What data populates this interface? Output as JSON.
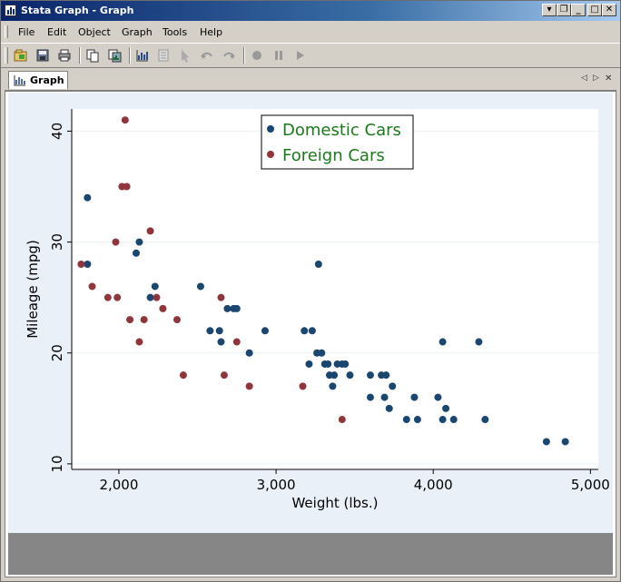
{
  "window": {
    "title": "Stata Graph - Graph"
  },
  "menu": {
    "items": [
      "File",
      "Edit",
      "Object",
      "Graph",
      "Tools",
      "Help"
    ]
  },
  "tab": {
    "label": "Graph"
  },
  "chart_data": {
    "type": "scatter",
    "xlabel": "Weight (lbs.)",
    "ylabel": "Mileage (mpg)",
    "xlim": [
      1700,
      5050
    ],
    "ylim": [
      9.5,
      42
    ],
    "xticks": [
      2000,
      3000,
      4000,
      5000
    ],
    "xtick_labels": [
      "2,000",
      "3,000",
      "4,000",
      "5,000"
    ],
    "yticks": [
      10,
      20,
      30,
      40
    ],
    "ytick_labels": [
      "10",
      "20",
      "30",
      "40"
    ],
    "grid": true,
    "legend_position": "top-center",
    "series": [
      {
        "name": "Domestic Cars",
        "color": "#1a476f",
        "points": [
          [
            1800,
            34
          ],
          [
            1800,
            28
          ],
          [
            2110,
            29
          ],
          [
            2130,
            30
          ],
          [
            2200,
            25
          ],
          [
            2230,
            26
          ],
          [
            2520,
            26
          ],
          [
            2580,
            22
          ],
          [
            2640,
            22
          ],
          [
            2650,
            21
          ],
          [
            2690,
            24
          ],
          [
            2730,
            24
          ],
          [
            2750,
            24
          ],
          [
            2830,
            20
          ],
          [
            2930,
            22
          ],
          [
            3180,
            22
          ],
          [
            3210,
            19
          ],
          [
            3230,
            22
          ],
          [
            3260,
            20
          ],
          [
            3270,
            28
          ],
          [
            3290,
            20
          ],
          [
            3310,
            19
          ],
          [
            3330,
            19
          ],
          [
            3340,
            18
          ],
          [
            3360,
            17
          ],
          [
            3370,
            18
          ],
          [
            3390,
            19
          ],
          [
            3420,
            19
          ],
          [
            3440,
            19
          ],
          [
            3470,
            18
          ],
          [
            3600,
            18
          ],
          [
            3600,
            16
          ],
          [
            3670,
            18
          ],
          [
            3690,
            16
          ],
          [
            3700,
            18
          ],
          [
            3720,
            15
          ],
          [
            3740,
            17
          ],
          [
            3830,
            14
          ],
          [
            3880,
            16
          ],
          [
            3900,
            14
          ],
          [
            4030,
            16
          ],
          [
            4060,
            14
          ],
          [
            4060,
            21
          ],
          [
            4080,
            15
          ],
          [
            4130,
            14
          ],
          [
            4290,
            21
          ],
          [
            4330,
            14
          ],
          [
            4720,
            12
          ],
          [
            4840,
            12
          ]
        ]
      },
      {
        "name": "Foreign Cars",
        "color": "#90353b",
        "points": [
          [
            1760,
            28
          ],
          [
            1830,
            26
          ],
          [
            1930,
            25
          ],
          [
            1980,
            30
          ],
          [
            1990,
            25
          ],
          [
            2020,
            35
          ],
          [
            2040,
            41
          ],
          [
            2050,
            35
          ],
          [
            2070,
            23
          ],
          [
            2130,
            21
          ],
          [
            2160,
            23
          ],
          [
            2200,
            31
          ],
          [
            2240,
            25
          ],
          [
            2280,
            24
          ],
          [
            2370,
            23
          ],
          [
            2410,
            18
          ],
          [
            2650,
            25
          ],
          [
            2670,
            18
          ],
          [
            2750,
            21
          ],
          [
            2830,
            17
          ],
          [
            3170,
            17
          ],
          [
            3420,
            14
          ]
        ]
      }
    ]
  }
}
